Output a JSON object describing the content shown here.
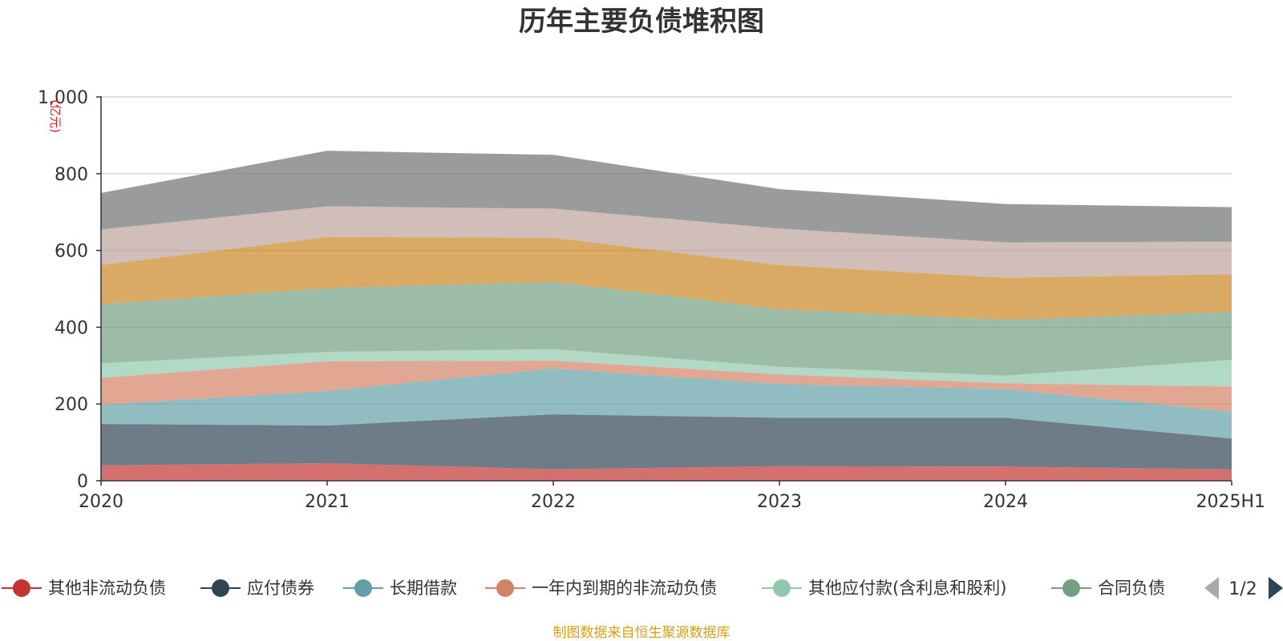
{
  "chart_data": {
    "type": "area",
    "stacked": true,
    "title": "历年主要负债堆积图",
    "unit": "(亿元)",
    "x": [
      "2020",
      "2021",
      "2022",
      "2023",
      "2024",
      "2025H1"
    ],
    "ylim": [
      0,
      1000
    ],
    "yticks": [
      "0",
      "200",
      "400",
      "600",
      "800",
      "1,000"
    ],
    "grid": true,
    "legend_position": "bottom",
    "series": [
      {
        "name": "其他非流动负债",
        "color": "#c23531",
        "values": [
          40,
          46,
          30,
          38,
          37,
          30
        ]
      },
      {
        "name": "应付债券",
        "color": "#2f4554",
        "values": [
          108,
          98,
          143,
          126,
          127,
          80
        ]
      },
      {
        "name": "长期借款",
        "color": "#61a0a8",
        "values": [
          50,
          90,
          120,
          88,
          75,
          70
        ]
      },
      {
        "name": "一年内到期的非流动负债",
        "color": "#d48265",
        "values": [
          70,
          77,
          20,
          25,
          15,
          65
        ]
      },
      {
        "name": "其他应付款(含利息和股利)",
        "color": "#91c7ae",
        "values": [
          38,
          25,
          30,
          20,
          20,
          70
        ]
      },
      {
        "name": "合同负债",
        "color": "#749f83",
        "values": [
          154,
          166,
          175,
          150,
          145,
          125
        ]
      },
      {
        "name": "",
        "color": "#ca8622",
        "values": [
          102,
          133,
          115,
          115,
          110,
          98
        ]
      },
      {
        "name": "",
        "color": "#bda29a",
        "values": [
          93,
          80,
          76,
          95,
          92,
          85
        ]
      },
      {
        "name": "",
        "color": "#6e7074",
        "values": [
          95,
          145,
          140,
          103,
          100,
          90
        ]
      }
    ]
  },
  "legend": {
    "items": [
      {
        "label": "其他非流动负债",
        "color": "#c23531"
      },
      {
        "label": "应付债券",
        "color": "#2f4554"
      },
      {
        "label": "长期借款",
        "color": "#61a0a8"
      },
      {
        "label": "一年内到期的非流动负债",
        "color": "#d48265"
      },
      {
        "label": "其他应付款(含利息和股利)",
        "color": "#91c7ae"
      },
      {
        "label": "合同负债",
        "color": "#749f83"
      }
    ],
    "page": "1/2"
  },
  "source": "制图数据来自恒生聚源数据库"
}
